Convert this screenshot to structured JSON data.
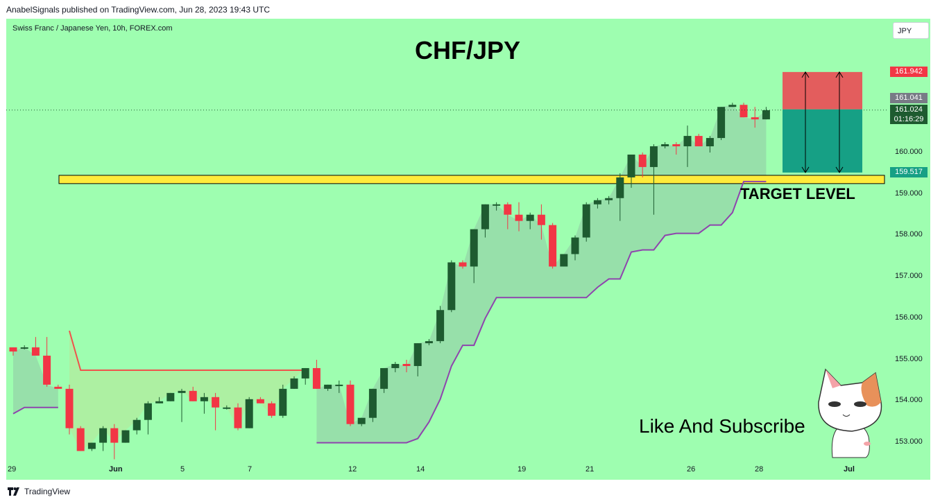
{
  "header": {
    "publisher_text": "AnabelSignals published on TradingView.com, Jun 28, 2023 19:43 UTC"
  },
  "chart_meta": {
    "symbol_label": "Swiss Franc / Japanese Yen, 10h, FOREX.com",
    "currency": "JPY",
    "title": "CHF/JPY",
    "target_label": "TARGET LEVEL",
    "cta": "Like And Subscribe"
  },
  "price_tags": {
    "stop": "161.942",
    "prev_close": "161.041",
    "last": "161.024",
    "countdown": "01:16:29",
    "target": "159.517"
  },
  "colors": {
    "background": "#9efeb0",
    "up_candle": "#1e5b30",
    "down_candle": "#f23645",
    "stop_zone": "#e35d5d",
    "target_zone": "#16a085",
    "trail_stop_long": "#8e44ad",
    "trail_stop_short": "#f0524b",
    "target_band": "#ffeb3b"
  },
  "footer": {
    "brand": "TradingView"
  },
  "chart_data": {
    "type": "candlestick",
    "title": "CHF/JPY",
    "y_ticks": [
      "160.000",
      "159.000",
      "158.000",
      "157.000",
      "156.000",
      "155.000",
      "154.000",
      "153.000"
    ],
    "x_ticks": [
      "29",
      "Jun",
      "5",
      "7",
      "12",
      "14",
      "19",
      "21",
      "26",
      "28",
      "Jul"
    ],
    "ylim": [
      152.3,
      162.4
    ],
    "grid": false,
    "candles": [
      [
        155.3,
        155.3,
        155.1,
        155.2
      ],
      [
        155.3,
        155.35,
        155.25,
        155.3
      ],
      [
        155.3,
        155.55,
        155.1,
        155.1
      ],
      [
        155.1,
        155.55,
        154.35,
        154.4
      ],
      [
        154.35,
        154.4,
        154.3,
        154.3
      ],
      [
        154.3,
        154.4,
        153.2,
        153.35
      ],
      [
        153.35,
        153.4,
        152.8,
        152.8
      ],
      [
        152.85,
        153.0,
        152.8,
        153.0
      ],
      [
        153.0,
        153.4,
        152.8,
        153.35
      ],
      [
        153.35,
        153.45,
        152.6,
        153.0
      ],
      [
        153.0,
        153.3,
        153.0,
        153.3
      ],
      [
        153.3,
        153.6,
        153.2,
        153.55
      ],
      [
        153.55,
        154.0,
        153.2,
        153.95
      ],
      [
        153.95,
        154.1,
        153.95,
        154.0
      ],
      [
        154.0,
        154.2,
        154.0,
        154.2
      ],
      [
        154.2,
        154.3,
        153.5,
        154.25
      ],
      [
        154.25,
        154.35,
        154.0,
        154.0
      ],
      [
        154.0,
        154.2,
        153.7,
        154.1
      ],
      [
        154.1,
        154.2,
        153.3,
        153.85
      ],
      [
        153.85,
        153.9,
        153.8,
        153.85
      ],
      [
        153.85,
        153.95,
        153.3,
        153.35
      ],
      [
        153.35,
        154.1,
        153.35,
        154.05
      ],
      [
        154.05,
        154.1,
        153.95,
        153.95
      ],
      [
        153.95,
        154.0,
        153.6,
        153.65
      ],
      [
        153.65,
        154.4,
        153.6,
        154.3
      ],
      [
        154.3,
        154.6,
        154.3,
        154.55
      ],
      [
        154.55,
        154.8,
        154.4,
        154.8
      ],
      [
        154.8,
        155.0,
        154.3,
        154.3
      ],
      [
        154.3,
        154.4,
        154.25,
        154.4
      ],
      [
        154.4,
        154.5,
        154.2,
        154.4
      ],
      [
        154.4,
        154.5,
        153.4,
        153.45
      ],
      [
        153.45,
        153.6,
        153.4,
        153.6
      ],
      [
        153.6,
        154.3,
        153.5,
        154.3
      ],
      [
        154.3,
        154.8,
        154.2,
        154.8
      ],
      [
        154.8,
        154.95,
        154.7,
        154.9
      ],
      [
        154.9,
        155.0,
        154.7,
        154.85
      ],
      [
        154.85,
        155.4,
        154.6,
        155.4
      ],
      [
        155.4,
        155.5,
        155.35,
        155.45
      ],
      [
        155.45,
        156.3,
        155.4,
        156.2
      ],
      [
        156.2,
        157.4,
        156.15,
        157.35
      ],
      [
        157.35,
        157.4,
        157.2,
        157.25
      ],
      [
        157.25,
        158.15,
        156.85,
        158.15
      ],
      [
        158.15,
        158.75,
        157.95,
        158.75
      ],
      [
        158.75,
        158.8,
        158.6,
        158.75
      ],
      [
        158.75,
        158.8,
        158.15,
        158.5
      ],
      [
        158.5,
        158.8,
        158.1,
        158.35
      ],
      [
        158.35,
        158.55,
        158.15,
        158.5
      ],
      [
        158.5,
        158.75,
        157.9,
        158.25
      ],
      [
        158.25,
        158.3,
        157.2,
        157.25
      ],
      [
        157.25,
        157.55,
        157.25,
        157.55
      ],
      [
        157.55,
        158.0,
        157.4,
        157.95
      ],
      [
        157.95,
        158.8,
        157.85,
        158.75
      ],
      [
        158.75,
        158.9,
        158.65,
        158.85
      ],
      [
        158.85,
        158.95,
        158.75,
        158.9
      ],
      [
        158.9,
        159.5,
        158.35,
        159.4
      ],
      [
        159.4,
        159.95,
        159.15,
        159.95
      ],
      [
        159.95,
        160.0,
        159.4,
        159.65
      ],
      [
        159.65,
        160.2,
        158.5,
        160.15
      ],
      [
        160.15,
        160.25,
        160.1,
        160.2
      ],
      [
        160.2,
        160.25,
        159.95,
        160.15
      ],
      [
        160.15,
        160.65,
        159.65,
        160.4
      ],
      [
        160.4,
        160.45,
        160.15,
        160.15
      ],
      [
        160.15,
        160.4,
        160.0,
        160.35
      ],
      [
        160.35,
        161.1,
        160.3,
        161.1
      ],
      [
        161.1,
        161.2,
        161.1,
        161.15
      ],
      [
        161.15,
        161.2,
        160.85,
        160.85
      ],
      [
        160.85,
        161.1,
        160.6,
        160.8
      ],
      [
        160.8,
        161.1,
        160.8,
        161.02
      ]
    ],
    "trailing_stop_long": [
      [
        0,
        153.7
      ],
      [
        1,
        153.85
      ],
      [
        2,
        153.85
      ],
      [
        3,
        153.85
      ],
      [
        4,
        153.85
      ],
      [
        27,
        153.0
      ],
      [
        28,
        153.0
      ],
      [
        29,
        153.0
      ],
      [
        30,
        153.0
      ],
      [
        31,
        153.0
      ],
      [
        32,
        153.0
      ],
      [
        33,
        153.0
      ],
      [
        34,
        153.0
      ],
      [
        35,
        153.0
      ],
      [
        36,
        153.1
      ],
      [
        37,
        153.5
      ],
      [
        38,
        154.05
      ],
      [
        39,
        154.85
      ],
      [
        40,
        155.35
      ],
      [
        41,
        155.35
      ],
      [
        42,
        156.0
      ],
      [
        43,
        156.5
      ],
      [
        44,
        156.5
      ],
      [
        45,
        156.5
      ],
      [
        46,
        156.5
      ],
      [
        47,
        156.5
      ],
      [
        48,
        156.5
      ],
      [
        49,
        156.5
      ],
      [
        50,
        156.5
      ],
      [
        51,
        156.5
      ],
      [
        52,
        156.75
      ],
      [
        53,
        156.95
      ],
      [
        54,
        156.95
      ],
      [
        55,
        157.6
      ],
      [
        56,
        157.65
      ],
      [
        57,
        157.65
      ],
      [
        58,
        158.0
      ],
      [
        59,
        158.05
      ],
      [
        60,
        158.05
      ],
      [
        61,
        158.05
      ],
      [
        62,
        158.25
      ],
      [
        63,
        158.25
      ],
      [
        64,
        158.55
      ],
      [
        65,
        159.3
      ],
      [
        66,
        159.3
      ],
      [
        67,
        159.3
      ]
    ],
    "trailing_stop_short": [
      [
        5,
        155.7
      ],
      [
        6,
        154.75
      ],
      [
        26,
        154.75
      ]
    ],
    "trade": {
      "entry": 161.041,
      "stop": 161.942,
      "target": 159.517,
      "last_price": 161.024
    },
    "target_zone": [
      159.25,
      159.45
    ]
  }
}
